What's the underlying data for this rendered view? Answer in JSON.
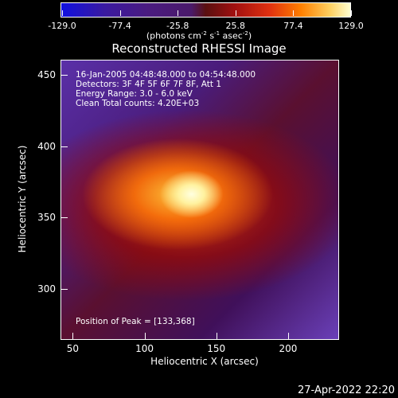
{
  "chart_data": {
    "type": "heatmap",
    "title": "Reconstructed RHESSI Image",
    "xlabel": "Heliocentric X (arcsec)",
    "ylabel": "Heliocentric Y (arcsec)",
    "xlim": [
      42,
      235
    ],
    "ylim": [
      265,
      460
    ],
    "x_ticks": [
      "50",
      "100",
      "150",
      "200"
    ],
    "y_ticks": [
      "300",
      "350",
      "400",
      "450"
    ],
    "colorbar": {
      "ticks": [
        "-129.0",
        "-77.4",
        "-25.8",
        "25.8",
        "77.4",
        "129.0"
      ],
      "range": [
        -129.0,
        129.0
      ],
      "units_text": "(photons cm",
      "units_exp1": "-2",
      "units_s": " s",
      "units_exp2": "-1",
      "units_asec": " asec",
      "units_exp3": "-2",
      "units_close": ")"
    },
    "annotations": [
      "16-Jan-2005 04:48:48.000 to 04:54:48.000",
      "Detectors: 3F 4F 5F 6F 7F 8F, Att 1",
      "Energy Range: 3.0 - 6.0 keV",
      "Clean     Total counts: 4.20E+03"
    ],
    "peak_label": "Position of Peak = [133,368]",
    "peak": [
      133,
      368
    ]
  },
  "timestamp": "27-Apr-2022 22:20",
  "colors": {
    "background": "#000000",
    "text": "#ffffff"
  }
}
